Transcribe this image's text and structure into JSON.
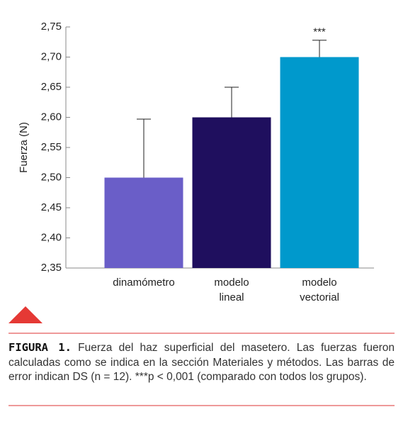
{
  "chart_data": {
    "type": "bar",
    "y_label": "Fuerza (N)",
    "categories": [
      "dinamómetro",
      "modelo lineal",
      "modelo vectorial"
    ],
    "values": [
      2.5,
      2.6,
      2.7
    ],
    "errors": [
      0.097,
      0.05,
      0.028
    ],
    "colors": [
      "#6a5ec8",
      "#1f0f5e",
      "#0099cc"
    ],
    "annotations": [
      null,
      null,
      "***"
    ],
    "ylim": [
      2.35,
      2.75
    ],
    "yticks": [
      {
        "value": 2.35,
        "label": "2,35"
      },
      {
        "value": 2.4,
        "label": "2,40"
      },
      {
        "value": 2.45,
        "label": "2,45"
      },
      {
        "value": 2.5,
        "label": "2,50"
      },
      {
        "value": 2.55,
        "label": "2,55"
      },
      {
        "value": 2.6,
        "label": "2,60"
      },
      {
        "value": 2.65,
        "label": "2,65"
      },
      {
        "value": 2.7,
        "label": "2,70"
      },
      {
        "value": 2.75,
        "label": "2,75"
      }
    ]
  },
  "caption": {
    "label": "FIGURA 1.",
    "text": "Fuerza del haz superficial del masetero. Las fuerzas fueron calculadas como se indica en la sección Materiales y métodos. Las barras de error indican DS (n = 12). ***p < 0,001 (comparado con todos los grupos)."
  }
}
